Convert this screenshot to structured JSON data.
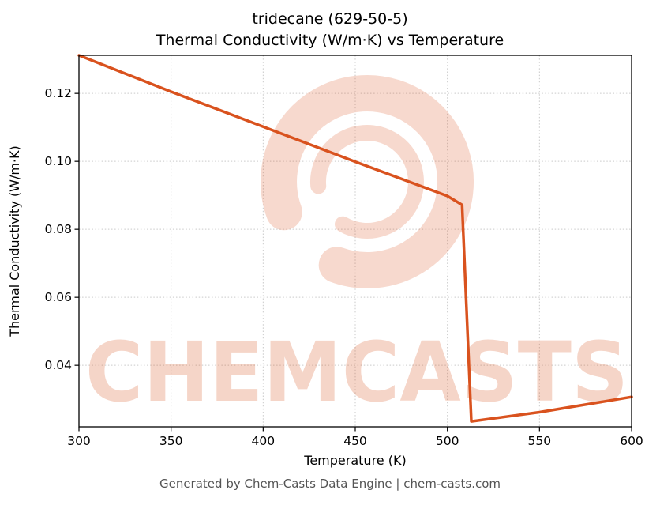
{
  "page": {
    "title_line1": "tridecane (629-50-5)",
    "title_line2": "Thermal Conductivity (W/m·K) vs Temperature",
    "footer_text": "Generated by Chem-Casts Data Engine | chem-casts.com"
  },
  "watermark": {
    "text": "CHEMCASTS",
    "color": "#d9531e",
    "text_opacity": 0.24,
    "logo_opacity": 0.22
  },
  "chart_data": {
    "type": "line",
    "title": "tridecane (629-50-5) — Thermal Conductivity (W/m·K) vs Temperature",
    "xlabel": "Temperature (K)",
    "ylabel": "Thermal Conductivity (W/m·K)",
    "xlim": [
      300,
      600
    ],
    "ylim": [
      0.0219,
      0.1312
    ],
    "xticks": [
      300,
      350,
      400,
      450,
      500,
      550,
      600
    ],
    "xtick_labels": [
      "300",
      "350",
      "400",
      "450",
      "500",
      "550",
      "600"
    ],
    "yticks": [
      0.04,
      0.06,
      0.08,
      0.1,
      0.12
    ],
    "ytick_labels": [
      "0.04",
      "0.06",
      "0.08",
      "0.10",
      "0.12"
    ],
    "grid": true,
    "grid_style": "dotted",
    "legend": false,
    "line_color": "#d9521e",
    "line_width": 3.5,
    "series": [
      {
        "name": "thermal conductivity",
        "points": [
          [
            300,
            0.1312
          ],
          [
            350,
            0.1205
          ],
          [
            400,
            0.1102
          ],
          [
            450,
            0.0999
          ],
          [
            500,
            0.0898
          ],
          [
            508,
            0.0872
          ],
          [
            513,
            0.0235
          ],
          [
            550,
            0.0262
          ],
          [
            600,
            0.0307
          ]
        ]
      }
    ]
  }
}
